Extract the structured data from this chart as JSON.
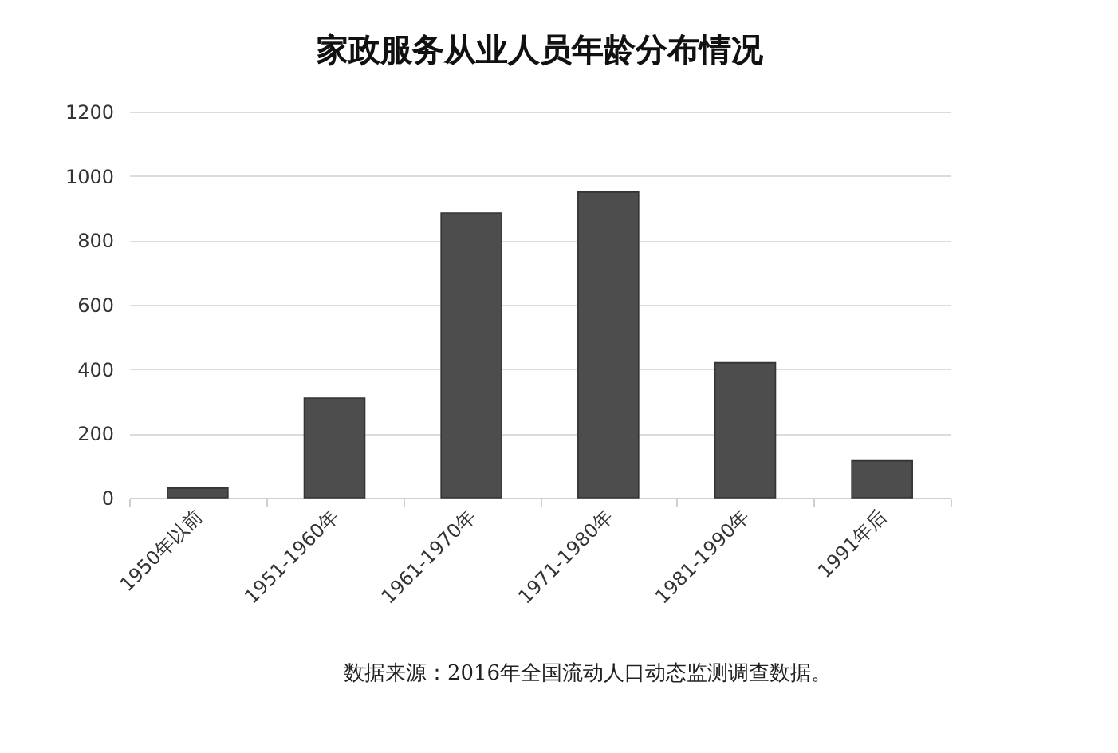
{
  "chart_data": {
    "type": "bar",
    "title": "家政服务从业人员年龄分布情况",
    "categories": [
      "1950年以前",
      "1951-1960年",
      "1961-1970年",
      "1971-1980年",
      "1981-1990年",
      "1991年后"
    ],
    "values": [
      30,
      310,
      885,
      950,
      420,
      115
    ],
    "color": "#4d4d4d",
    "ylim": [
      0,
      1200
    ],
    "yticks": [
      0,
      200,
      400,
      600,
      800,
      1000,
      1200
    ],
    "grid": "y",
    "annotations": [
      "数据来源：2016年全国流动人口动态监测调查数据。"
    ]
  }
}
